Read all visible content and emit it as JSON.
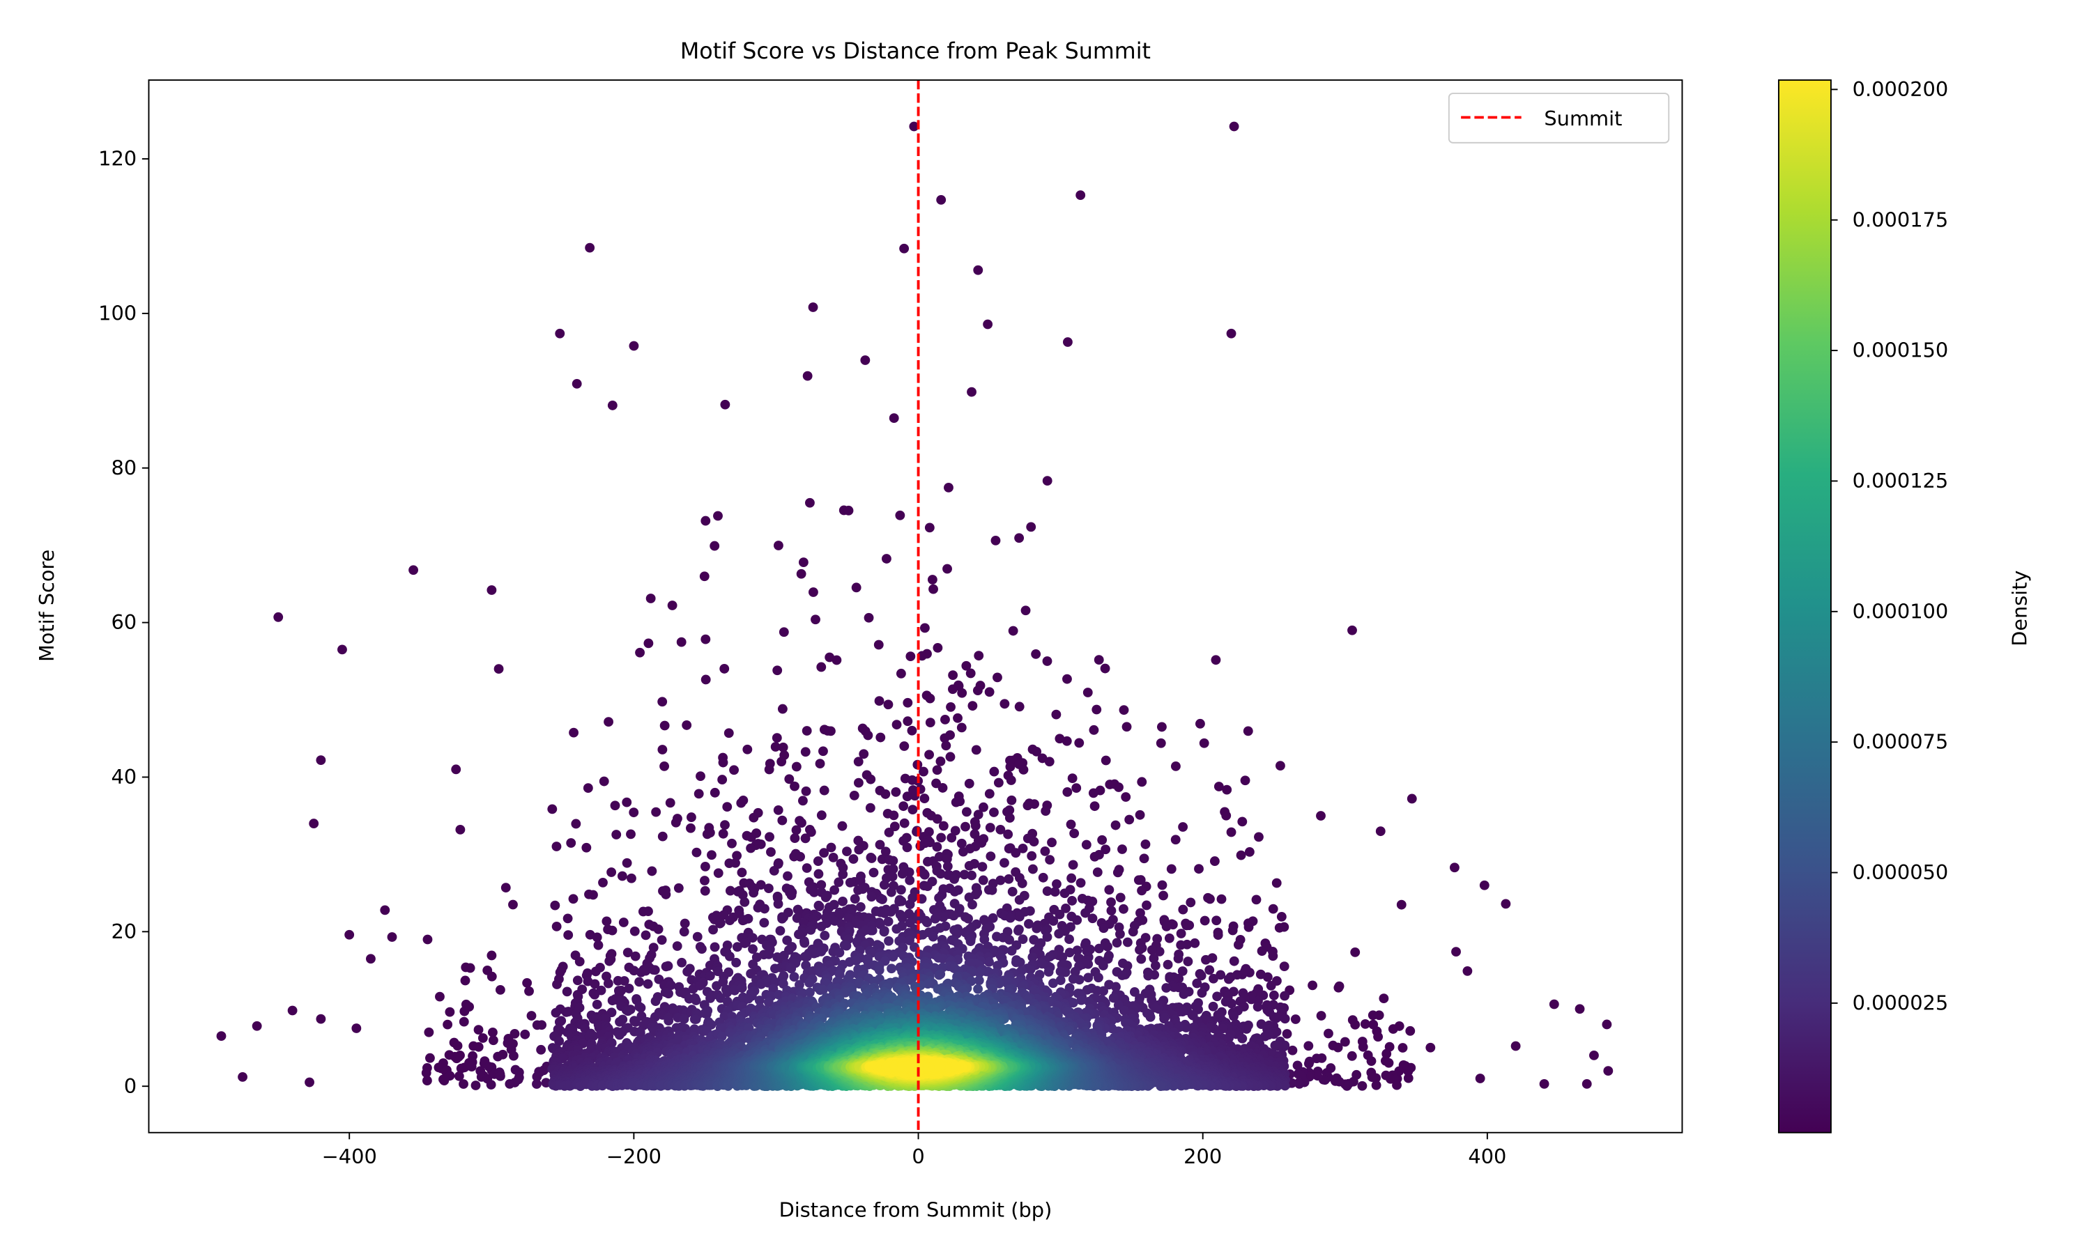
{
  "chart_data": {
    "type": "scatter",
    "title": "Motif Score vs Distance from Peak Summit",
    "xlabel": "Distance from Summit (bp)",
    "ylabel": "Motif Score",
    "xlim": [
      -541,
      537
    ],
    "ylim": [
      -6,
      130.2
    ],
    "xticks": [
      -400,
      -200,
      0,
      200,
      400
    ],
    "xtick_labels": [
      "−400",
      "−200",
      "0",
      "200",
      "400"
    ],
    "yticks": [
      0,
      20,
      40,
      60,
      80,
      100,
      120
    ],
    "ytick_labels": [
      "0",
      "20",
      "40",
      "60",
      "80",
      "100",
      "120"
    ],
    "grid": false,
    "color_by": "density",
    "colormap": "viridis",
    "colorbar": {
      "label": "Density",
      "range": [
        2e-07,
        0.0002018
      ],
      "ticks": [
        2.5e-05,
        5e-05,
        7.5e-05,
        0.0001,
        0.000125,
        0.00015,
        0.000175,
        0.0002
      ],
      "tick_labels": [
        "0.000025",
        "0.000050",
        "0.000075",
        "0.000100",
        "0.000125",
        "0.000150",
        "0.000175",
        "0.000200"
      ]
    },
    "vline": {
      "x": 0,
      "color": "#ff0000",
      "style": "dashed",
      "label": "Summit"
    },
    "legend": {
      "placement": "top-right",
      "entries": [
        "Summit"
      ]
    },
    "bulk_distribution": {
      "n_points": 9000,
      "x_range_core": [
        -258,
        258
      ],
      "y_min": 0,
      "peak_density_location": [
        0,
        2.5
      ]
    },
    "sparse_points": [
      [
        -490,
        6.5
      ],
      [
        -475,
        1.2
      ],
      [
        -465,
        7.8
      ],
      [
        -450,
        60.7
      ],
      [
        -440,
        9.8
      ],
      [
        -428,
        0.5
      ],
      [
        -425,
        34
      ],
      [
        -420,
        42.2
      ],
      [
        -420,
        8.7
      ],
      [
        -405,
        56.5
      ],
      [
        -400,
        19.6
      ],
      [
        -395,
        7.5
      ],
      [
        -385,
        16.5
      ],
      [
        -375,
        22.8
      ],
      [
        -370,
        19.3
      ],
      [
        -355,
        66.8
      ],
      [
        -345,
        19
      ],
      [
        -325,
        41
      ],
      [
        -322,
        33.2
      ],
      [
        -315,
        15.3
      ],
      [
        -300,
        64.2
      ],
      [
        -295,
        54
      ],
      [
        -290,
        25.7
      ],
      [
        -285,
        23.5
      ],
      [
        -231,
        108.5
      ],
      [
        -252,
        97.4
      ],
      [
        -240,
        90.9
      ],
      [
        -200,
        95.8
      ],
      [
        -215,
        88.1
      ],
      [
        -74,
        100.8
      ],
      [
        -3,
        124.2
      ],
      [
        -10,
        108.4
      ],
      [
        16,
        114.7
      ],
      [
        42,
        105.6
      ],
      [
        114,
        115.3
      ],
      [
        105,
        96.3
      ],
      [
        222,
        124.2
      ],
      [
        220,
        97.4
      ],
      [
        305,
        59
      ],
      [
        347,
        37.2
      ],
      [
        283,
        35
      ],
      [
        325,
        33
      ],
      [
        377,
        28.3
      ],
      [
        398,
        26
      ],
      [
        413,
        23.6
      ],
      [
        378,
        17.4
      ],
      [
        386,
        14.9
      ],
      [
        447,
        10.6
      ],
      [
        465,
        10.0
      ],
      [
        484,
        8
      ],
      [
        420,
        5.2
      ],
      [
        485,
        2
      ],
      [
        470,
        0.3
      ],
      [
        440,
        0.3
      ],
      [
        475,
        4
      ],
      [
        395,
        1
      ],
      [
        360,
        5
      ]
    ]
  }
}
